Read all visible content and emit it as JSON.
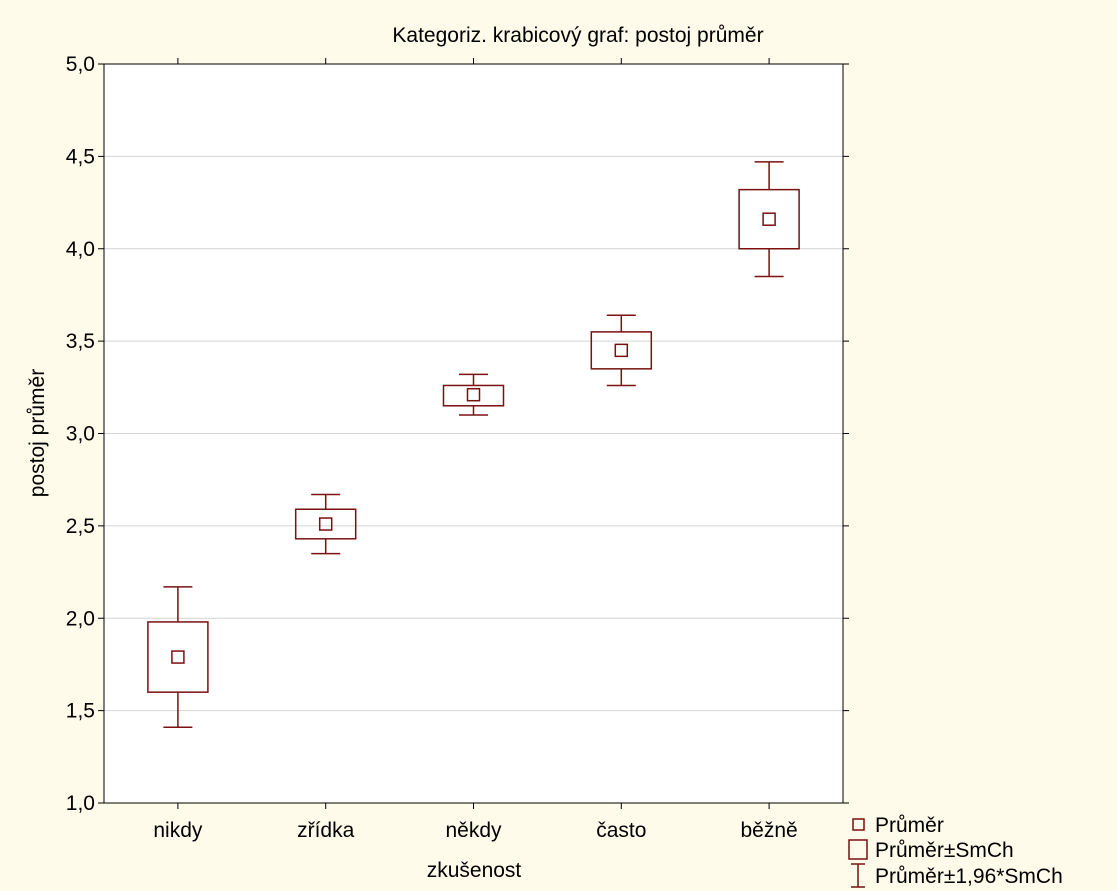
{
  "chart_data": {
    "type": "boxplot",
    "title": "Kategoriz. krabicový graf: postoj průměr",
    "xlabel": "zkušenost",
    "ylabel": "postoj průměr",
    "categories": [
      "nikdy",
      "zřídka",
      "někdy",
      "často",
      "běžně"
    ],
    "ylim": [
      1.0,
      5.0
    ],
    "yticks": [
      1.0,
      1.5,
      2.0,
      2.5,
      3.0,
      3.5,
      4.0,
      4.5,
      5.0
    ],
    "ytick_labels": [
      "1,0",
      "1,5",
      "2,0",
      "2,5",
      "3,0",
      "3,5",
      "4,0",
      "4,5",
      "5,0"
    ],
    "grid": true,
    "legend_position": "bottom-right",
    "legend": [
      {
        "symbol": "mean",
        "label": "Průměr"
      },
      {
        "symbol": "box",
        "label": "Průměr±SmCh"
      },
      {
        "symbol": "whisker",
        "label": "Průměr±1,96*SmCh"
      }
    ],
    "series": [
      {
        "category": "nikdy",
        "mean": 1.79,
        "box": [
          1.6,
          1.98
        ],
        "whisker": [
          1.41,
          2.17
        ]
      },
      {
        "category": "zřídka",
        "mean": 2.51,
        "box": [
          2.43,
          2.59
        ],
        "whisker": [
          2.35,
          2.67
        ]
      },
      {
        "category": "někdy",
        "mean": 3.21,
        "box": [
          3.15,
          3.26
        ],
        "whisker": [
          3.1,
          3.32
        ]
      },
      {
        "category": "často",
        "mean": 3.45,
        "box": [
          3.35,
          3.55
        ],
        "whisker": [
          3.26,
          3.64
        ]
      },
      {
        "category": "běžně",
        "mean": 4.16,
        "box": [
          4.0,
          4.32
        ],
        "whisker": [
          3.85,
          4.47
        ]
      }
    ],
    "colors": {
      "mark": "#7a1010",
      "background": "#fefbea",
      "plot_background": "#ffffff",
      "grid": "#d4d4d4",
      "axis": "#000000"
    }
  }
}
